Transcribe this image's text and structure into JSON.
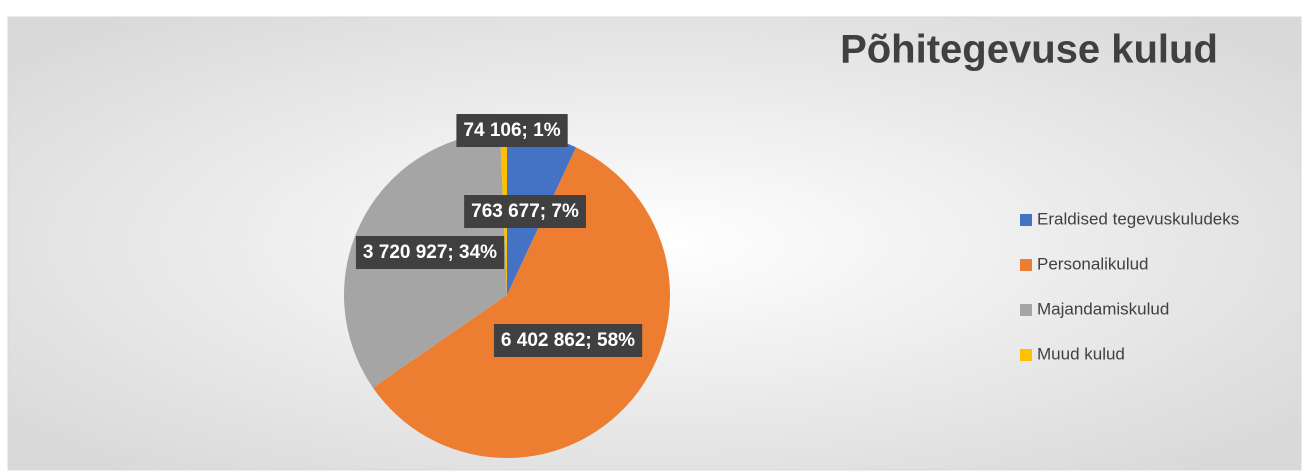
{
  "chart_data": {
    "type": "pie",
    "title": "Põhitegevuse kulud",
    "categories": [
      "Eraldised tegevuskuludeks",
      "Personalikulud",
      "Majandamiskulud",
      "Muud kulud"
    ],
    "values": [
      763677,
      6402862,
      3720927,
      74106
    ],
    "value_labels": [
      "763 677; 7%",
      "6 402 862; 58%",
      "3 720 927; 34%",
      "74 106; 1%"
    ],
    "colors": [
      "#4472c4",
      "#ed7d31",
      "#a5a5a5",
      "#ffc000"
    ],
    "legend": "right"
  }
}
